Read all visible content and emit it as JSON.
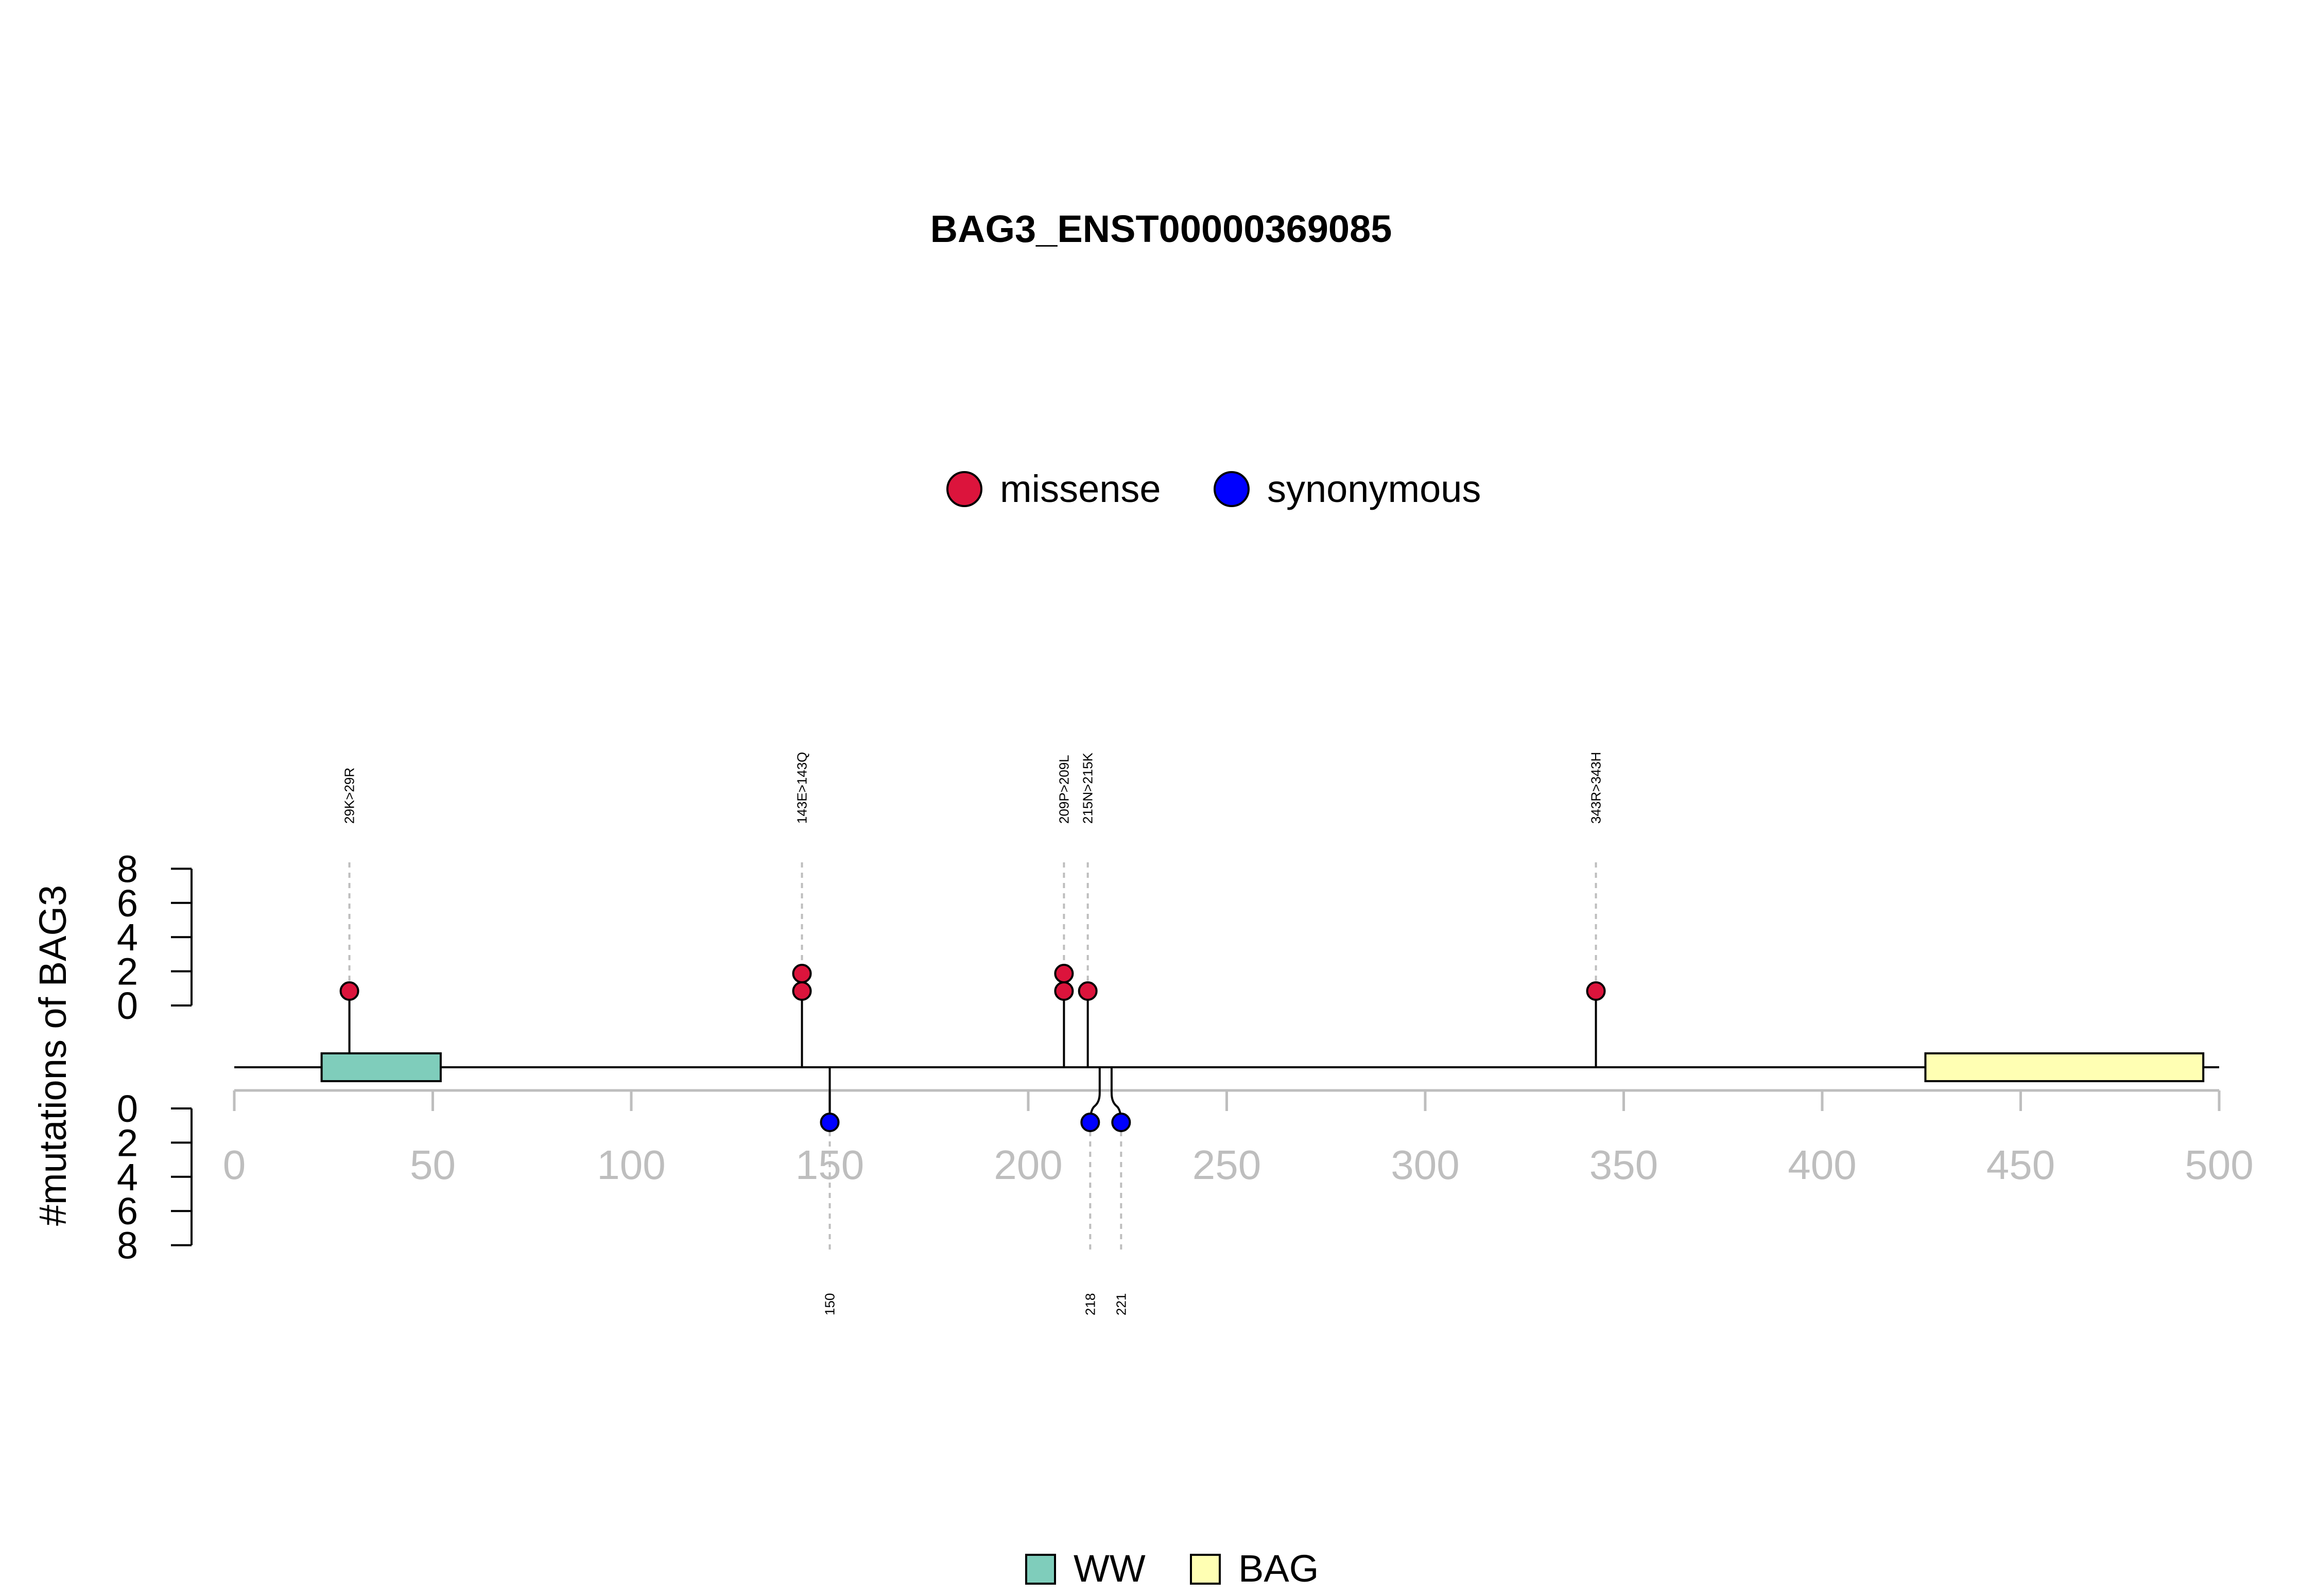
{
  "chart_data": {
    "type": "lollipop",
    "title": "BAG3_ENST00000369085",
    "ylabel": "#mutations of BAG3",
    "xlim": [
      0,
      500
    ],
    "x_ticks": [
      0,
      50,
      100,
      150,
      200,
      250,
      300,
      350,
      400,
      450,
      500
    ],
    "y_ticks": [
      0,
      2,
      4,
      6,
      8
    ],
    "ylim_upper": [
      0,
      8
    ],
    "ylim_lower": [
      0,
      8
    ],
    "protein_length": 500,
    "mutation_legend": [
      {
        "label": "missense",
        "color": "#DC143C"
      },
      {
        "label": "synonymous",
        "color": "#0000FF"
      }
    ],
    "domain_legend": [
      {
        "label": "WW",
        "color": "#7FCDBB"
      },
      {
        "label": "BAG",
        "color": "#FFFFB3"
      }
    ],
    "domains": [
      {
        "name": "WW",
        "start": 22,
        "end": 52,
        "color": "#7FCDBB"
      },
      {
        "name": "BAG",
        "start": 426,
        "end": 496,
        "color": "#FFFFB3"
      }
    ],
    "upper_mutations": [
      {
        "label": "29K>29R",
        "position": 29,
        "count": 1,
        "type": "missense"
      },
      {
        "label": "143E>143Q",
        "position": 143,
        "count": 2,
        "type": "missense"
      },
      {
        "label": "209P>209L",
        "position": 209,
        "count": 2,
        "type": "missense"
      },
      {
        "label": "215N>215K",
        "position": 215,
        "count": 1,
        "type": "missense"
      },
      {
        "label": "343R>343H",
        "position": 343,
        "count": 1,
        "type": "missense"
      }
    ],
    "lower_mutations": [
      {
        "label": "150",
        "position": 150,
        "count": 1,
        "type": "synonymous"
      },
      {
        "label": "218",
        "position": 218,
        "count": 1,
        "type": "synonymous"
      },
      {
        "label": "221",
        "position": 221,
        "count": 1,
        "type": "synonymous"
      }
    ],
    "colors": {
      "missense": "#DC143C",
      "synonymous": "#0000FF",
      "axis": "#BEBEBE",
      "guide": "#BEBEBE"
    }
  }
}
